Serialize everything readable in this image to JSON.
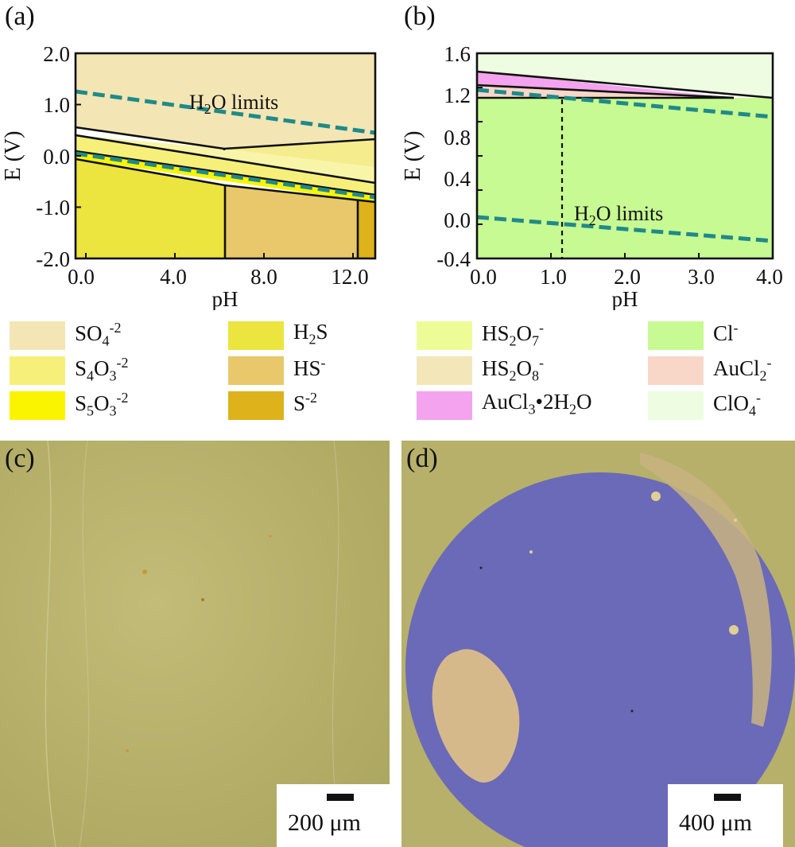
{
  "panel_a": {
    "label": "(a)",
    "xlabel": "pH",
    "ylabel": "E (V)",
    "xticks": [
      "0.0",
      "4.0",
      "8.0",
      "12.0"
    ],
    "yticks": [
      "2.0",
      "1.0",
      "0.0",
      "-1.0",
      "-2.0"
    ],
    "annotation": {
      "main": "H",
      "sub": "2",
      "rest": "O limits"
    }
  },
  "panel_b": {
    "label": "(b)",
    "xlabel": "pH",
    "ylabel": "E (V)",
    "xticks": [
      "0.0",
      "1.0",
      "2.0",
      "3.0",
      "4.0"
    ],
    "yticks": [
      "1.6",
      "1.2",
      "0.8",
      "0.4",
      "0.0",
      "-0.4"
    ],
    "annotation": {
      "main": "H",
      "sub": "2",
      "rest": "O limits"
    }
  },
  "legend_a": [
    {
      "id": "so4",
      "color": "#f3e6b4",
      "parts": [
        [
          "t",
          "SO"
        ],
        [
          "sub",
          "4"
        ],
        [
          "sup",
          "-2"
        ]
      ]
    },
    {
      "id": "s4o3",
      "color": "#f6f07a",
      "parts": [
        [
          "t",
          "S"
        ],
        [
          "sub",
          "4"
        ],
        [
          "t",
          "O"
        ],
        [
          "sub",
          "3"
        ],
        [
          "sup",
          "-2"
        ]
      ]
    },
    {
      "id": "s5o3",
      "color": "#faf400",
      "parts": [
        [
          "t",
          "S"
        ],
        [
          "sub",
          "5"
        ],
        [
          "t",
          "O"
        ],
        [
          "sub",
          "3"
        ],
        [
          "sup",
          "-2"
        ]
      ]
    },
    {
      "id": "h2s",
      "color": "#ece43f",
      "parts": [
        [
          "t",
          "H"
        ],
        [
          "sub",
          "2"
        ],
        [
          "t",
          "S"
        ]
      ]
    },
    {
      "id": "hs",
      "color": "#e8c86a",
      "parts": [
        [
          "t",
          "HS"
        ],
        [
          "sup",
          "-"
        ]
      ]
    },
    {
      "id": "s2",
      "color": "#ddb21b",
      "parts": [
        [
          "t",
          "S"
        ],
        [
          "sup",
          "-2"
        ]
      ]
    }
  ],
  "legend_b": [
    {
      "id": "hs2o7",
      "color": "#eefc97",
      "parts": [
        [
          "t",
          "HS"
        ],
        [
          "sub",
          "2"
        ],
        [
          "t",
          "O"
        ],
        [
          "sub",
          "7"
        ],
        [
          "sup",
          "-"
        ]
      ]
    },
    {
      "id": "hs2o8",
      "color": "#f3e6b8",
      "parts": [
        [
          "t",
          "HS"
        ],
        [
          "sub",
          "2"
        ],
        [
          "t",
          "O"
        ],
        [
          "sub",
          "8"
        ],
        [
          "sup",
          "-"
        ]
      ]
    },
    {
      "id": "aucl3",
      "color": "#f4a3ef",
      "parts": [
        [
          "t",
          "AuCl"
        ],
        [
          "sub",
          "3"
        ],
        [
          "t",
          "•2H"
        ],
        [
          "sub",
          "2"
        ],
        [
          "t",
          "O"
        ]
      ]
    },
    {
      "id": "cl",
      "color": "#c7fa92",
      "parts": [
        [
          "t",
          "Cl"
        ],
        [
          "sup",
          "-"
        ]
      ]
    },
    {
      "id": "aucl2",
      "color": "#f8d7c8",
      "parts": [
        [
          "t",
          "AuCl"
        ],
        [
          "sub",
          "2"
        ],
        [
          "sup",
          "-"
        ]
      ]
    },
    {
      "id": "clo4",
      "color": "#eefde2",
      "parts": [
        [
          "t",
          "ClO"
        ],
        [
          "sub",
          "4"
        ],
        [
          "sup",
          "-"
        ]
      ]
    }
  ],
  "panel_c": {
    "label": "(c)",
    "scale": "200 μm"
  },
  "panel_d": {
    "label": "(d)",
    "scale": "400 μm"
  },
  "colors": {
    "water_line": "#1f8a8a",
    "substrate": "#b9b36e",
    "disc": "#6b6ab8",
    "gold_patch": "#d6b98b"
  }
}
